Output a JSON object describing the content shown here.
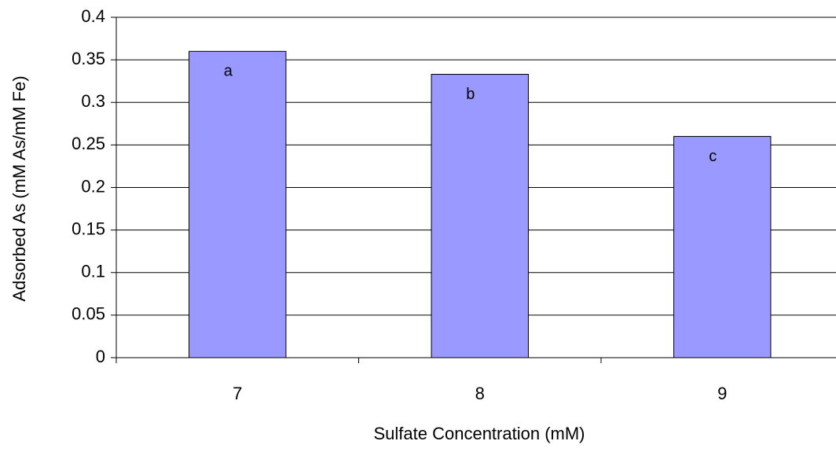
{
  "chart_data": {
    "type": "bar",
    "x_label": "Sulfate Concentration (mM)",
    "y_label": "Adsorbed As (mM As/mM Fe)",
    "categories": [
      "7",
      "8",
      "9"
    ],
    "values": [
      0.36,
      0.333,
      0.26
    ],
    "bar_labels": [
      "a",
      "b",
      "c"
    ],
    "color": "#9999ff",
    "ylim": [
      0,
      0.4
    ],
    "yticks": [
      0,
      0.05,
      0.1,
      0.15,
      0.2,
      0.25,
      0.3,
      0.35,
      0.4
    ],
    "grid": true
  }
}
